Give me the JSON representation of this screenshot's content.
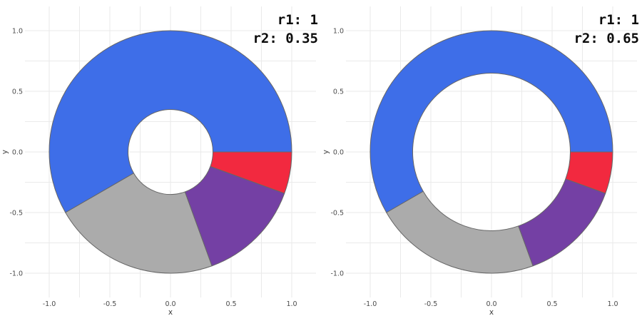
{
  "styles": {
    "background": "#ffffff",
    "grid_color": "#eaeaea",
    "tick_label_color": "#4c4c4c",
    "axis_title_color": "#3d3d3d",
    "annotation_color": "#0c0c0c",
    "wedge_stroke_color": "#666666"
  },
  "chart_data": [
    {
      "type": "pie",
      "variant": "donut",
      "annotations": [
        "r1: 1",
        "r2: 0.35"
      ],
      "r1_label": "r1: 1",
      "r2_label": "r2: 0.35",
      "outer_radius": 1,
      "inner_radius": 0.35,
      "xlabel": "x",
      "ylabel": "y",
      "axis_range": [
        -1.2,
        1.2
      ],
      "grid": true,
      "major_ticks": [
        -1.0,
        -0.5,
        0.0,
        0.5,
        1.0
      ],
      "major_tick_labels": [
        "-1.0",
        "-0.5",
        "0.0",
        "0.5",
        "1.0"
      ],
      "minor_ticks": [
        -0.75,
        -0.25,
        0.25,
        0.75
      ],
      "segments": [
        {
          "name": "blue",
          "color": "#3E6EE8",
          "start_angle_deg": 0,
          "end_angle_deg": 210,
          "fraction": 0.583
        },
        {
          "name": "gray",
          "color": "#ABABAB",
          "start_angle_deg": 210,
          "end_angle_deg": 290,
          "fraction": 0.222
        },
        {
          "name": "purple",
          "color": "#7440A4",
          "start_angle_deg": 290,
          "end_angle_deg": 340,
          "fraction": 0.139
        },
        {
          "name": "red",
          "color": "#F2293F",
          "start_angle_deg": 340,
          "end_angle_deg": 360,
          "fraction": 0.056
        }
      ]
    },
    {
      "type": "pie",
      "variant": "donut",
      "annotations": [
        "r1: 1",
        "r2: 0.65"
      ],
      "r1_label": "r1: 1",
      "r2_label": "r2: 0.65",
      "outer_radius": 1,
      "inner_radius": 0.65,
      "xlabel": "x",
      "ylabel": "y",
      "axis_range": [
        -1.2,
        1.2
      ],
      "grid": true,
      "major_ticks": [
        -1.0,
        -0.5,
        0.0,
        0.5,
        1.0
      ],
      "major_tick_labels": [
        "-1.0",
        "-0.5",
        "0.0",
        "0.5",
        "1.0"
      ],
      "minor_ticks": [
        -0.75,
        -0.25,
        0.25,
        0.75
      ],
      "segments": [
        {
          "name": "blue",
          "color": "#3E6EE8",
          "start_angle_deg": 0,
          "end_angle_deg": 210,
          "fraction": 0.583
        },
        {
          "name": "gray",
          "color": "#ABABAB",
          "start_angle_deg": 210,
          "end_angle_deg": 290,
          "fraction": 0.222
        },
        {
          "name": "purple",
          "color": "#7440A4",
          "start_angle_deg": 290,
          "end_angle_deg": 340,
          "fraction": 0.139
        },
        {
          "name": "red",
          "color": "#F2293F",
          "start_angle_deg": 340,
          "end_angle_deg": 360,
          "fraction": 0.056
        }
      ]
    }
  ]
}
